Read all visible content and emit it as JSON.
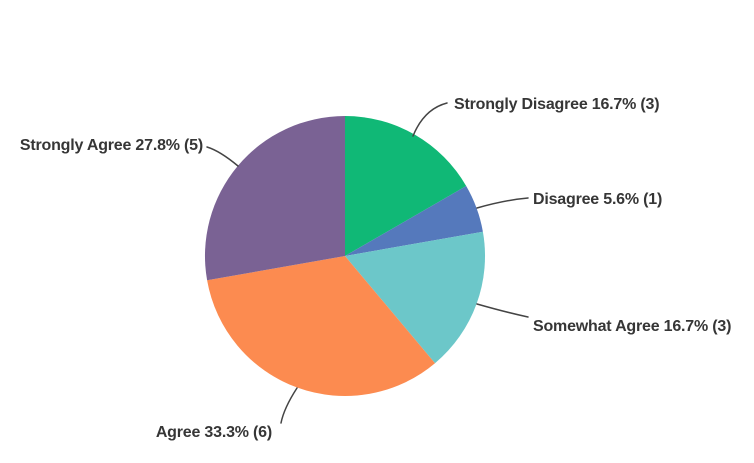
{
  "chart_data": {
    "type": "pie",
    "start_angle_deg": 0,
    "direction": "clockwise",
    "legend_position": "none",
    "labels_style": "outside-callout",
    "background": "#ffffff",
    "text_color": "#363636",
    "line_color": "#444444",
    "categories": [
      "Strongly Disagree",
      "Disagree",
      "Somewhat Agree",
      "Agree",
      "Strongly Agree"
    ],
    "values": [
      3,
      1,
      3,
      6,
      5
    ],
    "percents": [
      16.7,
      5.6,
      16.7,
      33.3,
      27.8
    ],
    "slices": [
      {
        "key": "strongly-disagree",
        "name": "Strongly Disagree",
        "percent": 16.7,
        "count": 3,
        "display": "Strongly Disagree 16.7% (3)",
        "color": "#10b876"
      },
      {
        "key": "disagree",
        "name": "Disagree",
        "percent": 5.6,
        "count": 1,
        "display": "Disagree 5.6% (1)",
        "color": "#5579bc"
      },
      {
        "key": "somewhat-agree",
        "name": "Somewhat Agree",
        "percent": 16.7,
        "count": 3,
        "display": "Somewhat Agree 16.7% (3)",
        "color": "#6cc7c9"
      },
      {
        "key": "agree",
        "name": "Agree",
        "percent": 33.3,
        "count": 6,
        "display": "Agree 33.3% (6)",
        "color": "#fc8b50"
      },
      {
        "key": "strongly-agree",
        "name": "Strongly Agree",
        "percent": 27.8,
        "count": 5,
        "display": "Strongly Agree 27.8% (5)",
        "color": "#7a6294"
      }
    ]
  }
}
